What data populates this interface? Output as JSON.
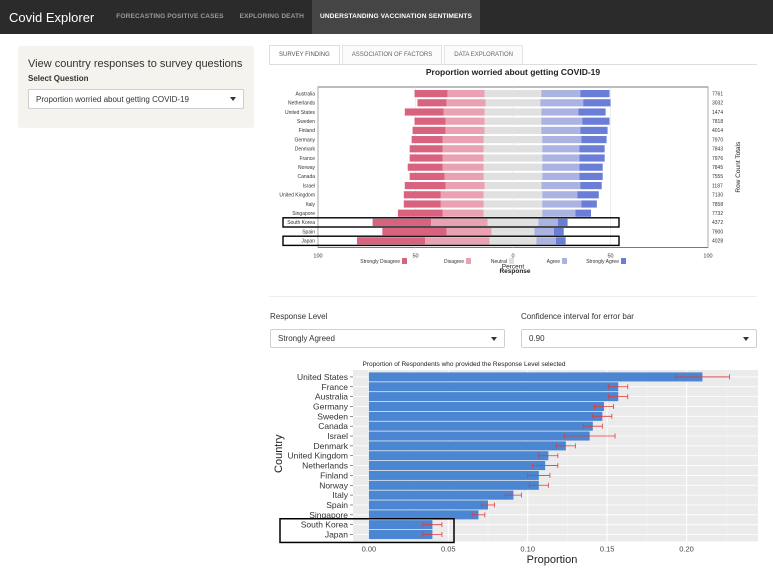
{
  "navbar": {
    "brand": "Covid Explorer",
    "links": [
      "FORECASTING POSITIVE CASES",
      "EXPLORING DEATH",
      "UNDERSTANDING VACCINATION SENTIMENTS"
    ]
  },
  "sidebar": {
    "title": "View country responses to survey questions",
    "select_label": "Select Question",
    "select_value": "Proportion worried about getting COVID-19"
  },
  "tabs": [
    "SURVEY FINDING",
    "ASSOCIATION OF FACTORS",
    "DATA EXPLORATION"
  ],
  "controls": {
    "response_level_label": "Response Level",
    "response_level_value": "Strongly Agreed",
    "ci_label": "Confidence interval for error bar",
    "ci_value": "0.90"
  },
  "colors": {
    "strongly_disagree": "#d9627f",
    "disagree": "#eaa1b1",
    "neutral": "#e0e0e0",
    "agree": "#aab3e2",
    "strongly_agree": "#6a7ed8",
    "bar": "#4a86d1",
    "error": "#e33a3a"
  },
  "chart_data": [
    {
      "type": "bar",
      "title": "Proportion worried about getting COVID-19",
      "xlabel": "Percent",
      "ylabel": "Row Count Totals",
      "xticks": [
        "100",
        "50",
        "0",
        "50",
        "100"
      ],
      "xlim": [
        -100,
        100
      ],
      "legend_title": "Response",
      "legend": [
        "Strongly Disagree",
        "Disagree",
        "Neutral",
        "Agree",
        "Strongly Agree"
      ],
      "legend_position": "bottom",
      "categories": [
        "Australia",
        "Netherlands",
        "United States",
        "Sweden",
        "Finland",
        "Germany",
        "Denmark",
        "France",
        "Norway",
        "Canada",
        "Israel",
        "United Kingdom",
        "Italy",
        "Singapore",
        "South Korea",
        "Spain",
        "Japan"
      ],
      "row_totals": [
        "7761",
        "3032",
        "1474",
        "7818",
        "4014",
        "7970",
        "7843",
        "7976",
        "7845",
        "7555",
        "1187",
        "7130",
        "7858",
        "7732",
        "4372",
        "7900",
        "4028"
      ],
      "series": [
        {
          "name": "Strongly Disagree",
          "values": [
            -17,
            -15,
            -20,
            -16,
            -17,
            -16,
            -17,
            -17,
            -18,
            -18,
            -21,
            -19,
            -19,
            -23,
            -30,
            -33,
            -35
          ]
        },
        {
          "name": "Disagree",
          "values": [
            -19,
            -20,
            -21,
            -20,
            -20,
            -21,
            -21,
            -21,
            -21,
            -20,
            -20,
            -22,
            -22,
            -21,
            -29,
            -23,
            -33
          ]
        },
        {
          "name": "Neutral",
          "values": [
            29,
            28,
            29,
            29,
            29,
            30,
            30,
            30,
            30,
            30,
            29,
            30,
            30,
            30,
            26,
            22,
            24
          ]
        },
        {
          "name": "Agree",
          "values": [
            20,
            22,
            19,
            21,
            20,
            20,
            19,
            19,
            19,
            19,
            20,
            18,
            20,
            17,
            10,
            10,
            10
          ]
        },
        {
          "name": "Strongly Agree",
          "values": [
            15,
            14,
            14,
            14,
            14,
            13,
            13,
            13,
            12,
            12,
            11,
            11,
            8,
            8,
            5,
            5,
            5
          ]
        }
      ]
    },
    {
      "type": "bar",
      "title": "Proportion of Respondents who provided the Response Level selected",
      "xlabel": "Proportion",
      "ylabel": "Country",
      "xlim": [
        -0.01,
        0.245
      ],
      "xticks": [
        0.0,
        0.05,
        0.1,
        0.15,
        0.2
      ],
      "xtick_labels": [
        "0.00",
        "0.05",
        "0.10",
        "0.15",
        "0.20"
      ],
      "categories": [
        "United States",
        "France",
        "Australia",
        "Germany",
        "Sweden",
        "Canada",
        "Israel",
        "Denmark",
        "United Kingdom",
        "Netherlands",
        "Finland",
        "Norway",
        "Italy",
        "Spain",
        "Singapore",
        "South Korea",
        "Japan"
      ],
      "values": [
        0.21,
        0.157,
        0.157,
        0.148,
        0.147,
        0.141,
        0.139,
        0.124,
        0.113,
        0.111,
        0.107,
        0.107,
        0.091,
        0.075,
        0.069,
        0.04,
        0.04
      ],
      "err": [
        0.017,
        0.006,
        0.006,
        0.006,
        0.006,
        0.006,
        0.016,
        0.006,
        0.006,
        0.008,
        0.007,
        0.006,
        0.005,
        0.004,
        0.004,
        0.006,
        0.006
      ]
    }
  ]
}
